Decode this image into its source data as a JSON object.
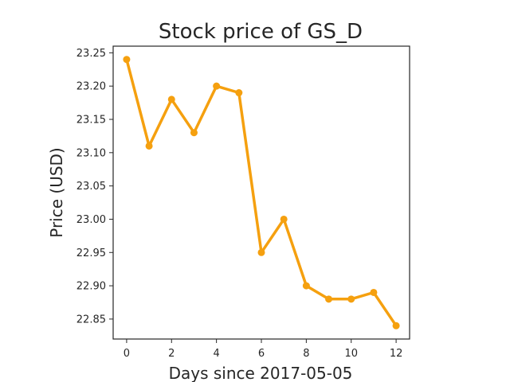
{
  "chart_data": {
    "type": "line",
    "title": "Stock price of GS_D",
    "xlabel": "Days since 2017-05-05",
    "ylabel": "Price (USD)",
    "x": [
      0,
      1,
      2,
      3,
      4,
      5,
      6,
      7,
      8,
      9,
      10,
      11,
      12
    ],
    "series": [
      {
        "values": [
          23.24,
          23.11,
          23.18,
          23.13,
          23.2,
          23.19,
          22.95,
          23.0,
          22.9,
          22.88,
          22.88,
          22.89,
          22.84
        ],
        "color": "#f5a00f"
      }
    ],
    "xticks": [
      0,
      2,
      4,
      6,
      8,
      10,
      12
    ],
    "yticks": [
      "22.85",
      "22.90",
      "22.95",
      "23.00",
      "23.05",
      "23.10",
      "23.15",
      "23.20",
      "23.25"
    ],
    "xlim": [
      -0.6,
      12.6
    ],
    "ylim": [
      22.82,
      23.26
    ],
    "grid": false,
    "legend": "none"
  }
}
